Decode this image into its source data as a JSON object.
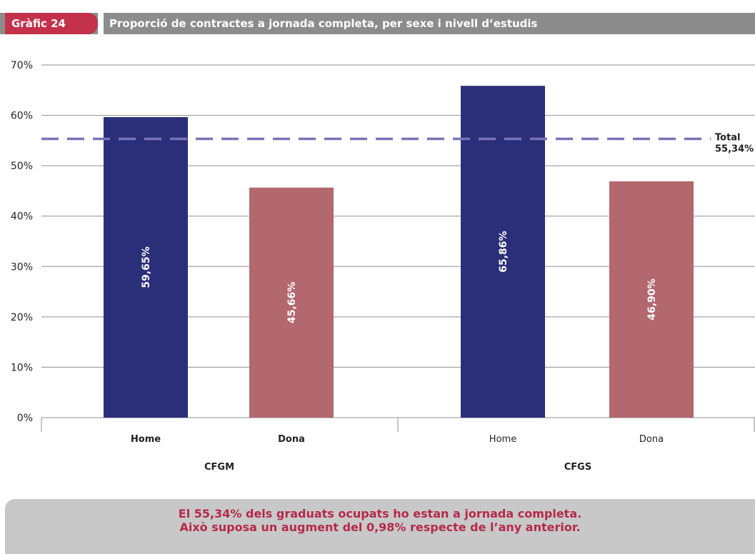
{
  "header": {
    "tag": "Gràfic 24",
    "title": "Proporció de contractes a jornada completa, per sexe i nivell d’estudis"
  },
  "chart_data": {
    "type": "bar",
    "title": "Proporció de contractes a jornada completa, per sexe i nivell d’estudis",
    "ylim": [
      0,
      70
    ],
    "yticks": [
      "0%",
      "10%",
      "20%",
      "30%",
      "40%",
      "50%",
      "60%",
      "70%"
    ],
    "groups": [
      "CFGM",
      "CFGS"
    ],
    "categories": [
      "Home",
      "Dona",
      "Home",
      "Dona"
    ],
    "values": [
      59.65,
      45.66,
      65.86,
      46.9
    ],
    "value_labels": [
      "59,65%",
      "45,66%",
      "65,86%",
      "46,90%"
    ],
    "colors": [
      "#2b2f7a",
      "#b3676e",
      "#2b2f7a",
      "#b3676e"
    ],
    "reference_line": {
      "value": 55.34,
      "label_line1": "Total",
      "label_line2": "55,34%",
      "color": "#7b72b8"
    },
    "grid": true
  },
  "footer": {
    "line1": "El 55,34% dels graduats ocupats ho estan a jornada completa.",
    "line2": "Això suposa un augment del 0,98% respecte de l’any anterior."
  }
}
